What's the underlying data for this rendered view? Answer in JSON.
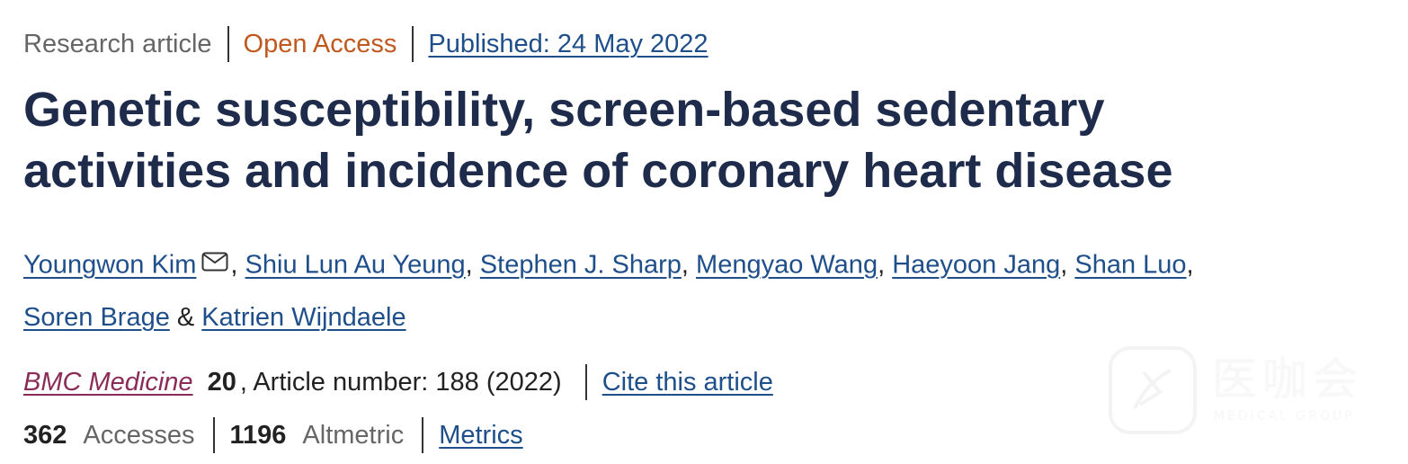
{
  "meta": {
    "article_type": "Research article",
    "access": "Open Access",
    "published": "Published: 24 May 2022"
  },
  "title": {
    "line1": "Genetic susceptibility, screen-based sedentary",
    "line2": "activities and incidence of coronary heart disease"
  },
  "authors": [
    {
      "name": "Youngwon Kim"
    },
    {
      "name": "Shiu Lun Au Yeung"
    },
    {
      "name": "Stephen J. Sharp"
    },
    {
      "name": "Mengyao Wang"
    },
    {
      "name": "Haeyoon Jang"
    },
    {
      "name": "Shan Luo"
    },
    {
      "name": "Soren Brage"
    },
    {
      "name": "Katrien Wijndaele"
    }
  ],
  "author_separators": {
    "comma": ",",
    "ampersand": "&"
  },
  "journal": {
    "name": "BMC Medicine",
    "volume": "20",
    "article_number": ", Article number: 188 (2022)",
    "cite_label": "Cite this article"
  },
  "metrics": {
    "accesses_count": "362",
    "accesses_label": "Accesses",
    "altmetric_count": "1196",
    "altmetric_label": "Altmetric",
    "metrics_link": "Metrics"
  },
  "watermark": {
    "text": "医咖会",
    "sub": "MEDICAL GROUP"
  },
  "colors": {
    "title": "#1f2b4b",
    "link": "#1f4f8a",
    "open_access": "#c0591f",
    "journal": "#8a2c57",
    "muted": "#666666"
  },
  "icons": {
    "corresponding_author": "envelope-icon",
    "watermark_logo": "medical-logo-icon"
  }
}
